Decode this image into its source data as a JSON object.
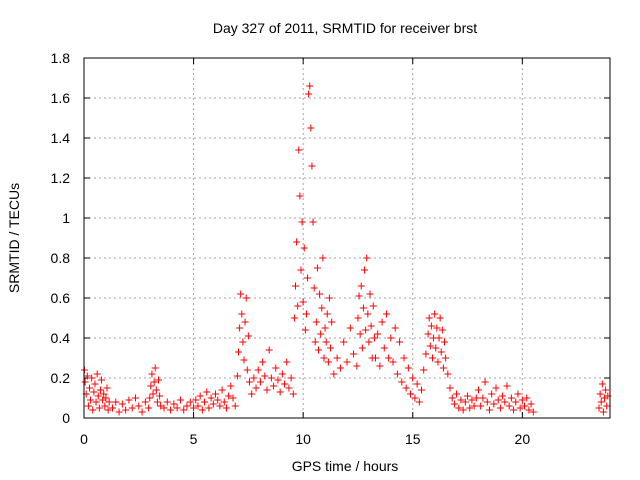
{
  "chart_data": {
    "type": "scatter",
    "title": "Day 327 of 2011, SRMTID for receiver brst",
    "xlabel": "GPS time / hours",
    "ylabel": "SRMTID / TECUs",
    "xlim": [
      0,
      24
    ],
    "ylim": [
      0,
      1.8
    ],
    "x_ticks": [
      0,
      5,
      10,
      15,
      20
    ],
    "x_tick_labels": [
      "0",
      "5",
      "10",
      "15",
      "20"
    ],
    "y_ticks": [
      0,
      0.2,
      0.4,
      0.6,
      0.8,
      1,
      1.2,
      1.4,
      1.6,
      1.8
    ],
    "y_tick_labels": [
      "0",
      "0.2",
      "0.4",
      "0.6",
      "0.8",
      "1",
      "1.2",
      "1.4",
      "1.6",
      "1.8"
    ],
    "grid": true,
    "marker": "plus",
    "series": [
      {
        "name": "SRMTID",
        "color": "#ff0000",
        "points": [
          [
            0.02,
            0.24
          ],
          [
            0.05,
            0.18
          ],
          [
            0.1,
            0.12
          ],
          [
            0.15,
            0.21
          ],
          [
            0.2,
            0.06
          ],
          [
            0.25,
            0.15
          ],
          [
            0.3,
            0.09
          ],
          [
            0.35,
            0.2
          ],
          [
            0.4,
            0.04
          ],
          [
            0.45,
            0.13
          ],
          [
            0.5,
            0.17
          ],
          [
            0.55,
            0.08
          ],
          [
            0.6,
            0.22
          ],
          [
            0.65,
            0.11
          ],
          [
            0.7,
            0.05
          ],
          [
            0.75,
            0.14
          ],
          [
            0.8,
            0.19
          ],
          [
            0.85,
            0.09
          ],
          [
            0.9,
            0.12
          ],
          [
            0.95,
            0.06
          ],
          [
            1.0,
            0.1
          ],
          [
            1.05,
            0.15
          ],
          [
            1.1,
            0.04
          ],
          [
            1.15,
            0.08
          ],
          [
            1.3,
            0.05
          ],
          [
            1.45,
            0.08
          ],
          [
            1.6,
            0.03
          ],
          [
            1.75,
            0.07
          ],
          [
            1.9,
            0.04
          ],
          [
            2.05,
            0.09
          ],
          [
            2.2,
            0.05
          ],
          [
            2.35,
            0.1
          ],
          [
            2.5,
            0.06
          ],
          [
            2.65,
            0.03
          ],
          [
            2.8,
            0.08
          ],
          [
            2.95,
            0.05
          ],
          [
            3.0,
            0.1
          ],
          [
            3.05,
            0.16
          ],
          [
            3.1,
            0.22
          ],
          [
            3.15,
            0.12
          ],
          [
            3.2,
            0.18
          ],
          [
            3.25,
            0.25
          ],
          [
            3.3,
            0.14
          ],
          [
            3.35,
            0.08
          ],
          [
            3.4,
            0.19
          ],
          [
            3.45,
            0.11
          ],
          [
            3.5,
            0.06
          ],
          [
            3.65,
            0.05
          ],
          [
            3.8,
            0.08
          ],
          [
            3.95,
            0.04
          ],
          [
            4.1,
            0.07
          ],
          [
            4.25,
            0.05
          ],
          [
            4.4,
            0.09
          ],
          [
            4.55,
            0.04
          ],
          [
            4.7,
            0.06
          ],
          [
            4.85,
            0.08
          ],
          [
            5.0,
            0.05
          ],
          [
            5.1,
            0.09
          ],
          [
            5.2,
            0.06
          ],
          [
            5.3,
            0.11
          ],
          [
            5.4,
            0.04
          ],
          [
            5.5,
            0.08
          ],
          [
            5.6,
            0.13
          ],
          [
            5.7,
            0.05
          ],
          [
            5.8,
            0.1
          ],
          [
            5.9,
            0.07
          ],
          [
            6.0,
            0.12
          ],
          [
            6.1,
            0.09
          ],
          [
            6.2,
            0.06
          ],
          [
            6.3,
            0.14
          ],
          [
            6.4,
            0.08
          ],
          [
            6.5,
            0.05
          ],
          [
            6.6,
            0.11
          ],
          [
            6.7,
            0.16
          ],
          [
            6.8,
            0.1
          ],
          [
            6.9,
            0.06
          ],
          [
            7.0,
            0.21
          ],
          [
            7.05,
            0.33
          ],
          [
            7.1,
            0.45
          ],
          [
            7.15,
            0.62
          ],
          [
            7.2,
            0.52
          ],
          [
            7.25,
            0.38
          ],
          [
            7.3,
            0.29
          ],
          [
            7.35,
            0.48
          ],
          [
            7.4,
            0.6
          ],
          [
            7.45,
            0.24
          ],
          [
            7.5,
            0.41
          ],
          [
            7.55,
            0.18
          ],
          [
            7.65,
            0.12
          ],
          [
            7.75,
            0.2
          ],
          [
            7.85,
            0.15
          ],
          [
            7.95,
            0.24
          ],
          [
            8.05,
            0.18
          ],
          [
            8.15,
            0.28
          ],
          [
            8.25,
            0.21
          ],
          [
            8.35,
            0.14
          ],
          [
            8.45,
            0.34
          ],
          [
            8.55,
            0.2
          ],
          [
            8.65,
            0.16
          ],
          [
            8.75,
            0.25
          ],
          [
            8.85,
            0.19
          ],
          [
            8.95,
            0.13
          ],
          [
            9.05,
            0.22
          ],
          [
            9.15,
            0.17
          ],
          [
            9.25,
            0.28
          ],
          [
            9.35,
            0.15
          ],
          [
            9.45,
            0.2
          ],
          [
            9.55,
            0.12
          ],
          [
            9.6,
            0.5
          ],
          [
            9.65,
            0.66
          ],
          [
            9.7,
            0.88
          ],
          [
            9.75,
            0.56
          ],
          [
            9.8,
            1.34
          ],
          [
            9.85,
            1.11
          ],
          [
            9.9,
            0.74
          ],
          [
            9.95,
            0.98
          ],
          [
            10.0,
            0.58
          ],
          [
            10.05,
            0.85
          ],
          [
            10.1,
            0.44
          ],
          [
            10.15,
            0.52
          ],
          [
            10.2,
            0.7
          ],
          [
            10.25,
            1.62
          ],
          [
            10.3,
            1.66
          ],
          [
            10.35,
            1.45
          ],
          [
            10.4,
            1.26
          ],
          [
            10.45,
            0.98
          ],
          [
            10.5,
            0.65
          ],
          [
            10.55,
            0.38
          ],
          [
            10.6,
            0.48
          ],
          [
            10.65,
            0.75
          ],
          [
            10.7,
            0.34
          ],
          [
            10.75,
            0.62
          ],
          [
            10.8,
            0.42
          ],
          [
            10.85,
            0.55
          ],
          [
            10.9,
            0.8
          ],
          [
            10.95,
            0.3
          ],
          [
            11.0,
            0.45
          ],
          [
            11.05,
            0.38
          ],
          [
            11.1,
            0.52
          ],
          [
            11.15,
            0.28
          ],
          [
            11.2,
            0.6
          ],
          [
            11.25,
            0.35
          ],
          [
            11.3,
            0.48
          ],
          [
            11.4,
            0.22
          ],
          [
            11.55,
            0.3
          ],
          [
            11.7,
            0.25
          ],
          [
            11.85,
            0.38
          ],
          [
            12.0,
            0.28
          ],
          [
            12.15,
            0.45
          ],
          [
            12.3,
            0.32
          ],
          [
            12.45,
            0.26
          ],
          [
            12.5,
            0.5
          ],
          [
            12.55,
            0.61
          ],
          [
            12.6,
            0.42
          ],
          [
            12.65,
            0.66
          ],
          [
            12.7,
            0.35
          ],
          [
            12.75,
            0.55
          ],
          [
            12.8,
            0.74
          ],
          [
            12.85,
            0.44
          ],
          [
            12.9,
            0.8
          ],
          [
            12.95,
            0.52
          ],
          [
            13.0,
            0.38
          ],
          [
            13.05,
            0.62
          ],
          [
            13.1,
            0.46
          ],
          [
            13.15,
            0.3
          ],
          [
            13.2,
            0.56
          ],
          [
            13.25,
            0.4
          ],
          [
            13.3,
            0.3
          ],
          [
            13.4,
            0.42
          ],
          [
            13.5,
            0.26
          ],
          [
            13.6,
            0.48
          ],
          [
            13.7,
            0.35
          ],
          [
            13.8,
            0.52
          ],
          [
            13.9,
            0.3
          ],
          [
            14.0,
            0.4
          ],
          [
            14.1,
            0.28
          ],
          [
            14.2,
            0.45
          ],
          [
            14.3,
            0.22
          ],
          [
            14.4,
            0.38
          ],
          [
            14.5,
            0.18
          ],
          [
            14.6,
            0.3
          ],
          [
            14.7,
            0.15
          ],
          [
            14.8,
            0.25
          ],
          [
            14.9,
            0.12
          ],
          [
            15.0,
            0.2
          ],
          [
            15.1,
            0.1
          ],
          [
            15.2,
            0.17
          ],
          [
            15.3,
            0.08
          ],
          [
            15.4,
            0.14
          ],
          [
            15.5,
            0.24
          ],
          [
            15.6,
            0.32
          ],
          [
            15.7,
            0.42
          ],
          [
            15.75,
            0.5
          ],
          [
            15.8,
            0.36
          ],
          [
            15.85,
            0.46
          ],
          [
            15.9,
            0.3
          ],
          [
            15.95,
            0.4
          ],
          [
            16.0,
            0.52
          ],
          [
            16.05,
            0.35
          ],
          [
            16.1,
            0.45
          ],
          [
            16.15,
            0.28
          ],
          [
            16.2,
            0.4
          ],
          [
            16.25,
            0.5
          ],
          [
            16.3,
            0.33
          ],
          [
            16.35,
            0.44
          ],
          [
            16.4,
            0.25
          ],
          [
            16.45,
            0.38
          ],
          [
            16.5,
            0.3
          ],
          [
            16.6,
            0.22
          ],
          [
            16.7,
            0.15
          ],
          [
            16.8,
            0.1
          ],
          [
            16.9,
            0.07
          ],
          [
            17.0,
            0.12
          ],
          [
            17.1,
            0.05
          ],
          [
            17.2,
            0.09
          ],
          [
            17.3,
            0.04
          ],
          [
            17.4,
            0.08
          ],
          [
            17.5,
            0.11
          ],
          [
            17.6,
            0.05
          ],
          [
            17.7,
            0.09
          ],
          [
            17.8,
            0.06
          ],
          [
            17.9,
            0.1
          ],
          [
            18.0,
            0.14
          ],
          [
            18.1,
            0.06
          ],
          [
            18.2,
            0.1
          ],
          [
            18.3,
            0.18
          ],
          [
            18.4,
            0.08
          ],
          [
            18.5,
            0.04
          ],
          [
            18.6,
            0.12
          ],
          [
            18.7,
            0.07
          ],
          [
            18.8,
            0.15
          ],
          [
            18.9,
            0.09
          ],
          [
            19.0,
            0.05
          ],
          [
            19.1,
            0.11
          ],
          [
            19.2,
            0.08
          ],
          [
            19.3,
            0.16
          ],
          [
            19.4,
            0.06
          ],
          [
            19.5,
            0.1
          ],
          [
            19.6,
            0.04
          ],
          [
            19.7,
            0.08
          ],
          [
            19.8,
            0.12
          ],
          [
            19.9,
            0.05
          ],
          [
            20.0,
            0.09
          ],
          [
            20.1,
            0.06
          ],
          [
            20.2,
            0.1
          ],
          [
            20.3,
            0.04
          ],
          [
            20.4,
            0.07
          ],
          [
            20.5,
            0.03
          ],
          [
            23.5,
            0.05
          ],
          [
            23.55,
            0.12
          ],
          [
            23.6,
            0.08
          ],
          [
            23.65,
            0.17
          ],
          [
            23.7,
            0.03
          ],
          [
            23.75,
            0.1
          ],
          [
            23.8,
            0.14
          ],
          [
            23.85,
            0.06
          ],
          [
            23.9,
            0.11
          ]
        ]
      }
    ]
  }
}
